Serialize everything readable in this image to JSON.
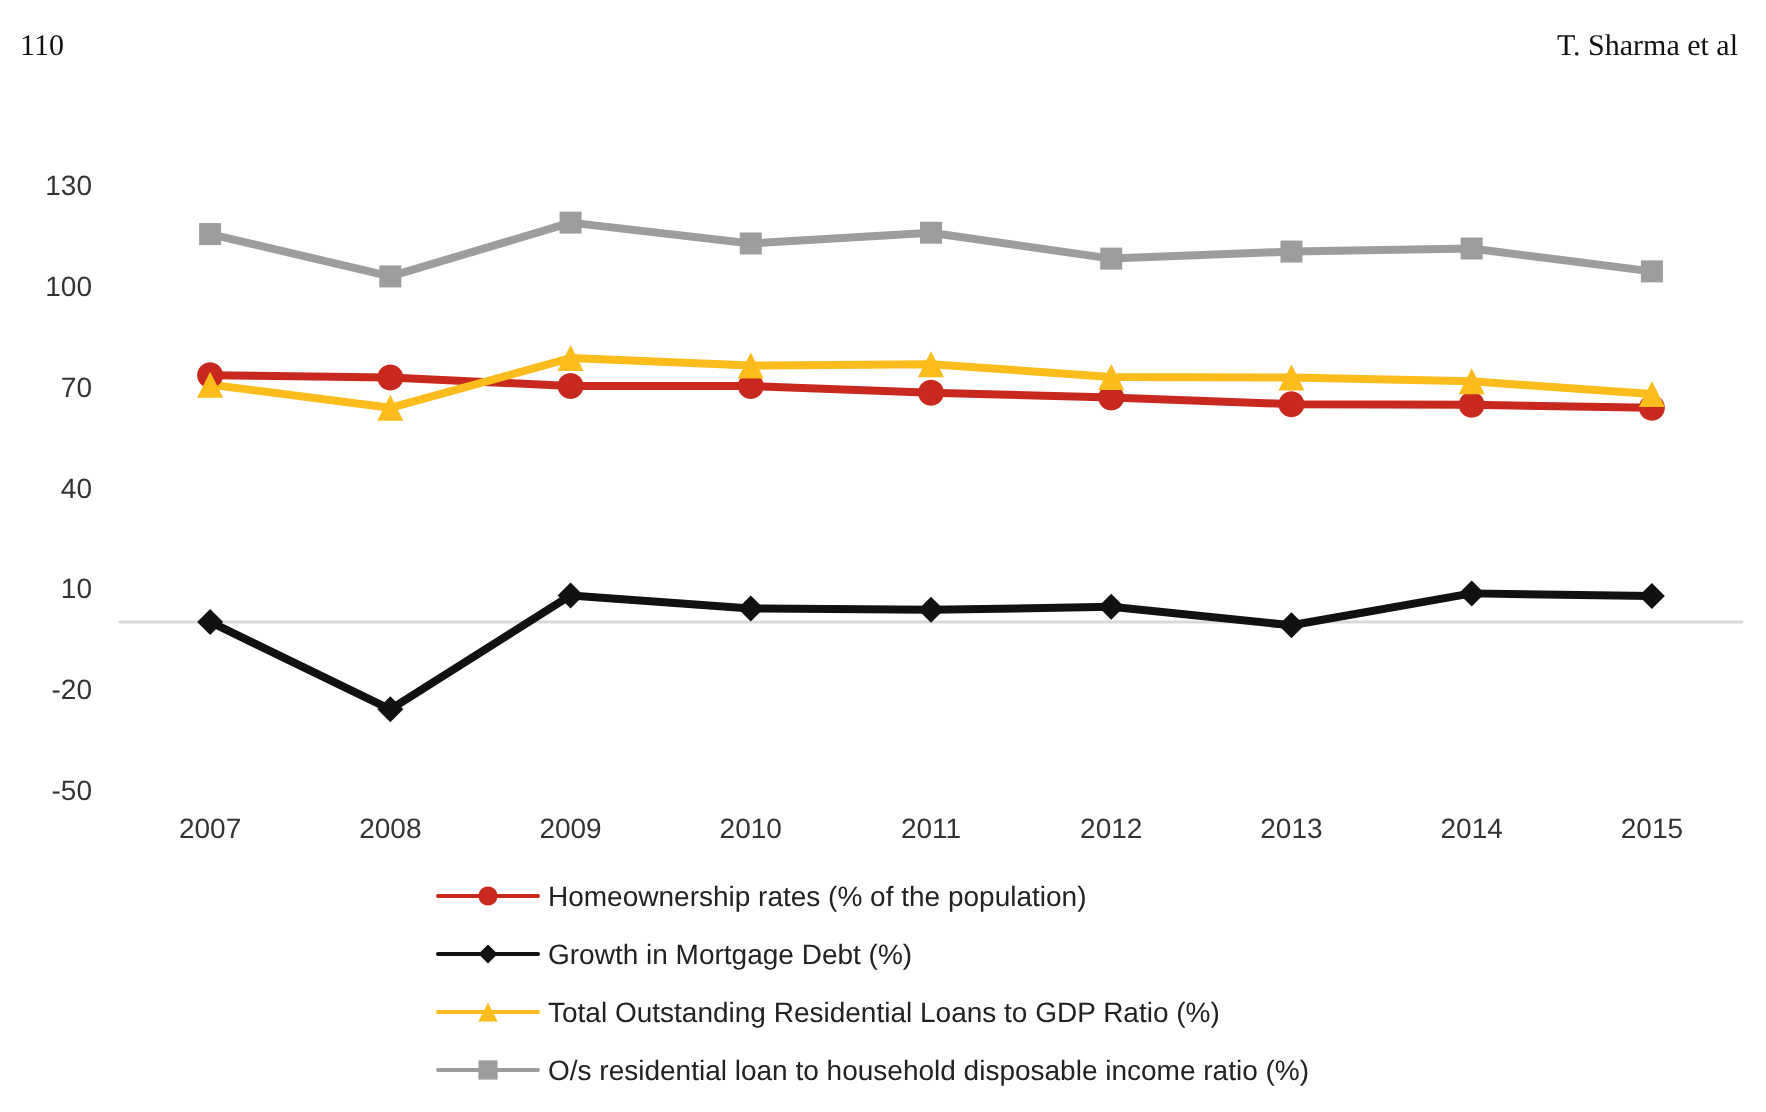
{
  "chart_data": {
    "type": "line",
    "categories": [
      "2007",
      "2008",
      "2009",
      "2010",
      "2011",
      "2012",
      "2013",
      "2014",
      "2015"
    ],
    "series": [
      {
        "name": "Homeownership rates (% of the population)",
        "color": "#c8281e",
        "marker": "circle",
        "values": [
          73.4,
          72.7,
          70.2,
          70.2,
          68.2,
          66.8,
          64.8,
          64.6,
          63.7
        ]
      },
      {
        "name": "Growth in Mortgage Debt (%)",
        "color": "#111111",
        "marker": "diamond",
        "values": [
          0,
          -26,
          7.9,
          4,
          3.6,
          4.5,
          -1,
          8.5,
          7.7
        ]
      },
      {
        "name": "Total Outstanding Residential Loans to GDP Ratio (%)",
        "color": "#fbbc1c",
        "marker": "triangle",
        "values": [
          70.6,
          63.7,
          78.5,
          76.3,
          76.7,
          72.9,
          72.7,
          71.6,
          67.8
        ]
      },
      {
        "name": "O/s residential loan to household disposable income ratio (%)",
        "color": "#9d9d9d",
        "marker": "square",
        "values": [
          115.4,
          102.8,
          118.8,
          112.6,
          115.8,
          108.1,
          110.2,
          111.1,
          104.3
        ]
      }
    ],
    "ylim": [
      -50,
      130
    ],
    "yticks": [
      -50,
      -20,
      10,
      40,
      70,
      100,
      130
    ],
    "grid": false,
    "legend": "bottom",
    "line_style": "solid",
    "annotations": [
      "110",
      "T. Sharma et al"
    ]
  }
}
